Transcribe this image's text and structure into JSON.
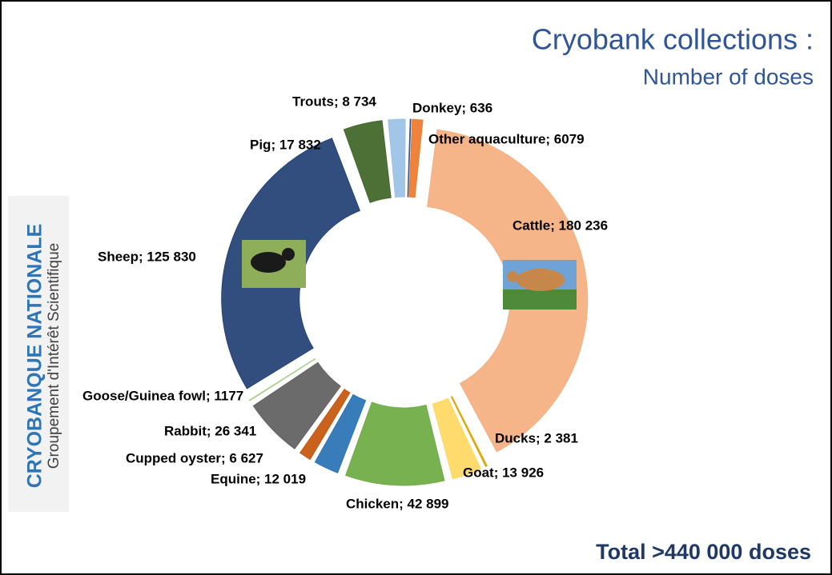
{
  "chart_data": {
    "type": "donut",
    "title": "Cryobank collections :",
    "subtitle": "Number of doses",
    "annotation": "Total >440 000 doses",
    "logo": {
      "name": "CRYOBANQUE NATIONALE",
      "tagline": "Groupement d'Intérêt Scientifique"
    },
    "categories": [
      "Donkey; 636",
      "Other aquaculture; 6079",
      "Cattle; 180 236",
      "Ducks; 2 381",
      "Goat; 13 926",
      "Chicken; 42 899",
      "Equine; 12 019",
      "Cupped oyster; 6 627",
      "Rabbit; 26 341",
      "Goose/Guinea fowl; 1177",
      "Sheep; 125 830",
      "Pig; 17 832",
      "Trouts; 8 734"
    ],
    "values": [
      636,
      6079,
      180236,
      2381,
      13926,
      42899,
      12019,
      6627,
      26341,
      1177,
      125830,
      17832,
      8734
    ],
    "colors": [
      "#2f5597",
      "#ed7d31",
      "#f4b183",
      "#e0a800",
      "#ffd966",
      "#70ad47",
      "#2e75b6",
      "#c55a11",
      "#636363",
      "#a9d18e",
      "#264478",
      "#43682b",
      "#9dc3e6"
    ]
  }
}
